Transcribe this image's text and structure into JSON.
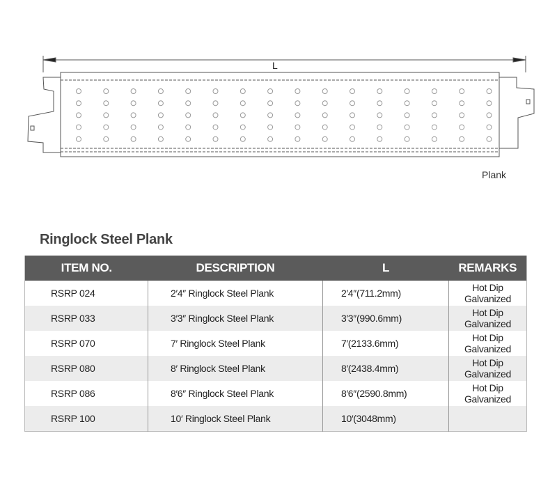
{
  "drawing": {
    "dimension_label": "L",
    "caption": "Plank"
  },
  "title": "Ringlock Steel Plank",
  "table": {
    "headers": [
      "ITEM NO.",
      "DESCRIPTION",
      "L",
      "REMARKS"
    ],
    "rows": [
      [
        "RSRP 024",
        "2′4″  Ringlock Steel Plank",
        "2′4″(711.2mm)",
        "Hot Dip Galvanized"
      ],
      [
        "RSRP 033",
        "3′3″   Ringlock Steel Plank",
        "3′3″(990.6mm)",
        "Hot Dip Galvanized"
      ],
      [
        "RSRP 070",
        "7′ Ringlock Steel Plank",
        "7′(2133.6mm)",
        "Hot Dip Galvanized"
      ],
      [
        "RSRP 080",
        "8′ Ringlock Steel Plank",
        "8′(2438.4mm)",
        "Hot Dip Galvanized"
      ],
      [
        "RSRP 086",
        "8′6″  Ringlock Steel Plank",
        "8′6″(2590.8mm)",
        "Hot Dip Galvanized"
      ],
      [
        "RSRP 100",
        "10′ Ringlock Steel Plank",
        "10′(3048mm)",
        ""
      ]
    ]
  }
}
